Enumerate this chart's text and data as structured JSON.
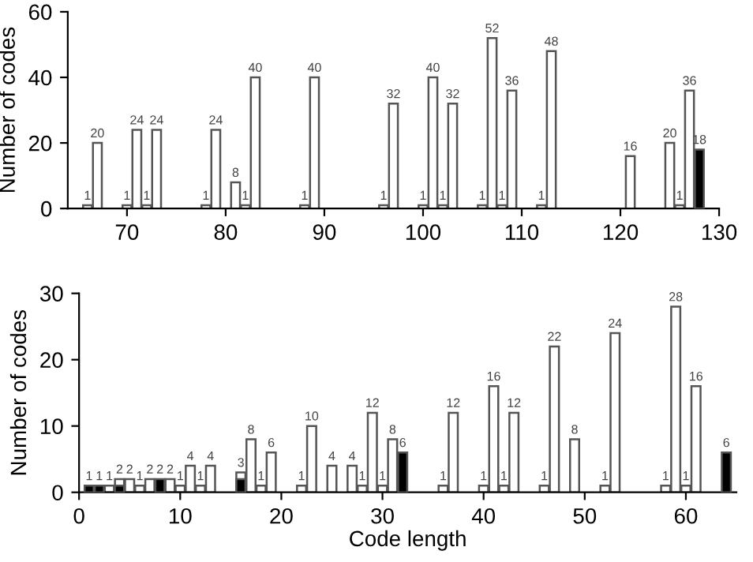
{
  "chart_data": [
    {
      "type": "bar",
      "ylabel": "Number of codes",
      "xlim": [
        64,
        130
      ],
      "xticks": [
        70,
        80,
        90,
        100,
        110,
        120,
        130
      ],
      "ylim": [
        0,
        60
      ],
      "yticks": [
        0,
        20,
        40,
        60
      ],
      "grid": false,
      "x": [
        66,
        67,
        70,
        71,
        72,
        73,
        78,
        79,
        81,
        82,
        83,
        88,
        89,
        96,
        97,
        100,
        101,
        102,
        103,
        106,
        107,
        108,
        109,
        112,
        113,
        121,
        125,
        126,
        127,
        128
      ],
      "series": [
        {
          "color": "#ffffff",
          "values": [
            1,
            20,
            1,
            24,
            1,
            24,
            1,
            24,
            8,
            1,
            40,
            1,
            40,
            1,
            32,
            1,
            40,
            1,
            32,
            1,
            52,
            1,
            36,
            1,
            48,
            16,
            20,
            1,
            36,
            null
          ],
          "value_labels": [
            "1",
            "20",
            "1",
            "24",
            "1",
            "24",
            "1",
            "24",
            "8",
            "1",
            "40",
            "1",
            "40",
            "1",
            "32",
            "1",
            "40",
            "1",
            "32",
            "1",
            "52",
            "1",
            "36",
            "1",
            "48",
            "16",
            "20",
            "1",
            "36",
            null
          ]
        },
        {
          "color": "#000000",
          "values": [
            null,
            null,
            null,
            null,
            null,
            null,
            null,
            null,
            null,
            null,
            null,
            null,
            null,
            null,
            null,
            null,
            null,
            null,
            null,
            null,
            null,
            null,
            null,
            null,
            null,
            null,
            null,
            null,
            null,
            18
          ],
          "value_labels": [
            null,
            null,
            null,
            null,
            null,
            null,
            null,
            null,
            null,
            null,
            null,
            null,
            null,
            null,
            null,
            null,
            null,
            null,
            null,
            null,
            null,
            null,
            null,
            null,
            null,
            null,
            null,
            null,
            null,
            "18"
          ]
        }
      ]
    },
    {
      "type": "bar",
      "ylabel": "Number of codes",
      "xlabel": "Code length",
      "xlim": [
        0,
        65
      ],
      "xticks": [
        0,
        10,
        20,
        30,
        40,
        50,
        60
      ],
      "ylim": [
        0,
        30
      ],
      "yticks": [
        0,
        10,
        20,
        30
      ],
      "grid": false,
      "x": [
        1,
        2,
        3,
        4,
        5,
        6,
        7,
        8,
        9,
        10,
        11,
        12,
        13,
        16,
        17,
        18,
        19,
        22,
        23,
        25,
        27,
        28,
        29,
        30,
        31,
        32,
        36,
        37,
        40,
        41,
        42,
        43,
        46,
        47,
        49,
        52,
        53,
        58,
        59,
        60,
        61,
        64
      ],
      "series": [
        {
          "color": "#ffffff",
          "values": [
            null,
            null,
            1,
            2,
            2,
            1,
            2,
            null,
            2,
            1,
            4,
            1,
            4,
            3,
            8,
            1,
            6,
            1,
            10,
            4,
            4,
            1,
            12,
            1,
            8,
            null,
            1,
            12,
            1,
            16,
            1,
            12,
            1,
            22,
            8,
            1,
            24,
            1,
            28,
            1,
            16,
            null
          ],
          "value_labels": [
            null,
            null,
            "1",
            "2",
            "2",
            "1",
            "2",
            null,
            "2",
            "1",
            "4",
            "1",
            "4",
            "3",
            "8",
            "1",
            "6",
            "1",
            "10",
            "4",
            "4",
            "1",
            "12",
            "1",
            "8",
            null,
            "1",
            "12",
            "1",
            "16",
            "1",
            "12",
            "1",
            "22",
            "8",
            "1",
            "24",
            "1",
            "28",
            "1",
            "16",
            null
          ]
        },
        {
          "color": "#000000",
          "values": [
            1,
            1,
            null,
            1,
            null,
            null,
            null,
            2,
            null,
            null,
            null,
            null,
            null,
            2,
            null,
            null,
            null,
            null,
            null,
            null,
            null,
            null,
            null,
            null,
            null,
            6,
            null,
            null,
            null,
            null,
            null,
            null,
            null,
            null,
            null,
            null,
            null,
            null,
            null,
            null,
            null,
            6
          ],
          "value_labels": [
            "1",
            "1",
            null,
            null,
            null,
            null,
            null,
            "2",
            null,
            null,
            null,
            null,
            null,
            null,
            null,
            null,
            null,
            null,
            null,
            null,
            null,
            null,
            null,
            null,
            null,
            "6",
            null,
            null,
            null,
            null,
            null,
            null,
            null,
            null,
            null,
            null,
            null,
            null,
            null,
            null,
            null,
            "6"
          ]
        }
      ]
    }
  ]
}
